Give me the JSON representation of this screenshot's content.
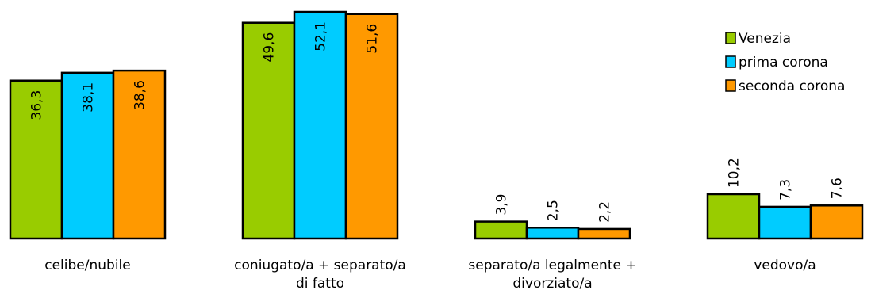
{
  "chart_data": {
    "type": "bar",
    "categories": [
      [
        "celibe/nubile"
      ],
      [
        "coniugato/a + separato/a",
        "di fatto"
      ],
      [
        "separato/a legalmente +",
        "divorziato/a"
      ],
      [
        "vedovo/a"
      ]
    ],
    "series": [
      {
        "name": "Venezia",
        "color": "#99cc00",
        "values": [
          36.3,
          49.6,
          3.9,
          10.2
        ],
        "labels": [
          "36,3",
          "49,6",
          "3,9",
          "10,2"
        ]
      },
      {
        "name": "prima corona",
        "color": "#00ccff",
        "values": [
          38.1,
          52.1,
          2.5,
          7.3
        ],
        "labels": [
          "38,1",
          "52,1",
          "2,5",
          "7,3"
        ]
      },
      {
        "name": "seconda corona",
        "color": "#ff9900",
        "values": [
          38.6,
          51.6,
          2.2,
          7.6
        ],
        "labels": [
          "38,6",
          "51,6",
          "2,2",
          "7,6"
        ]
      }
    ],
    "ylim": [
      0,
      52.1
    ],
    "grid": false,
    "legend": "top-right"
  }
}
